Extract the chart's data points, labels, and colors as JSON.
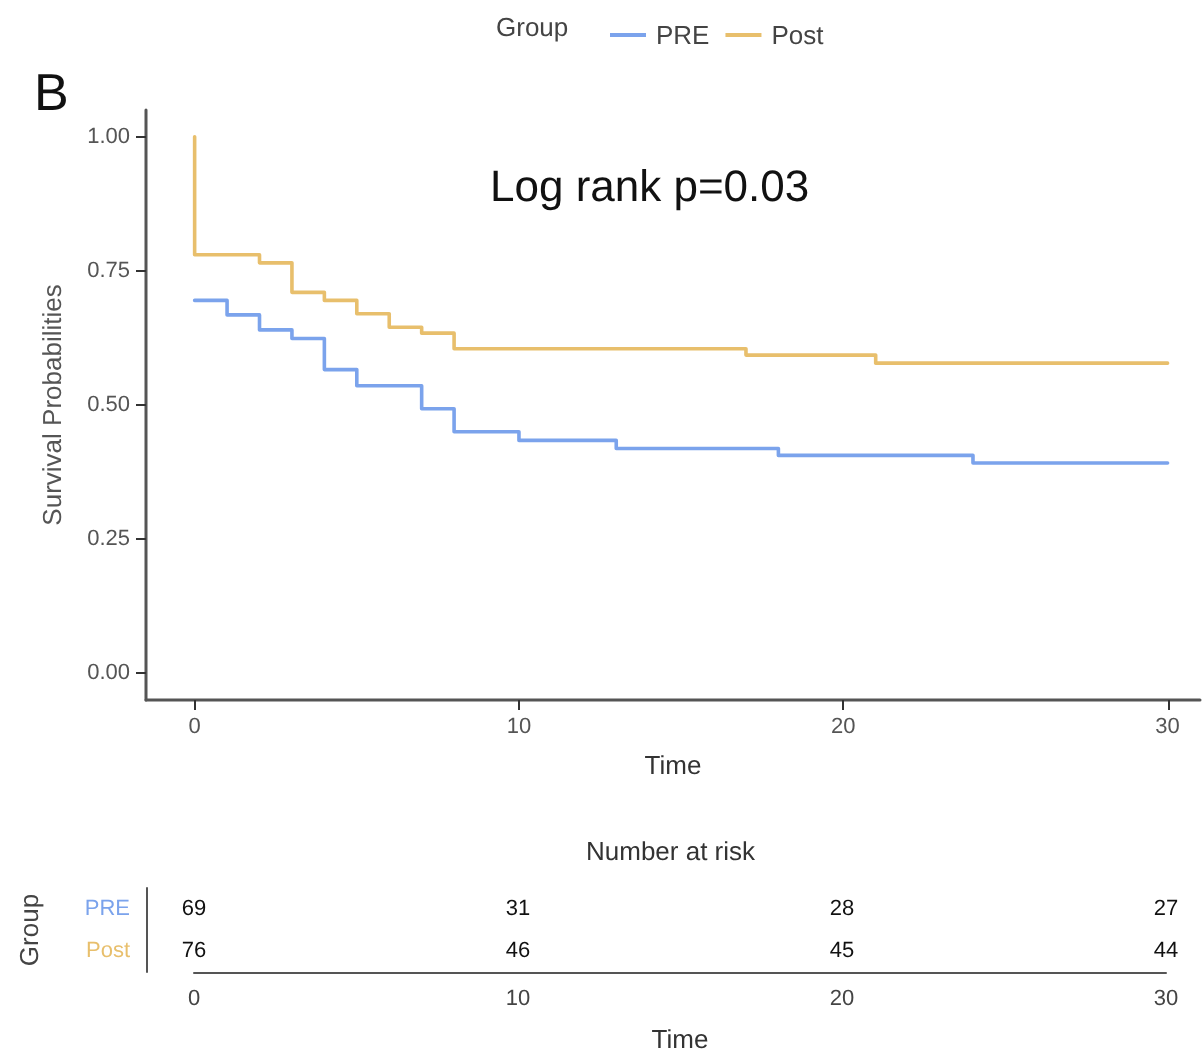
{
  "chart_data": [
    {
      "type": "step",
      "title": "B",
      "xlabel": "Time",
      "ylabel": "Survival Probabilities",
      "legend_title": "Group",
      "legend": "top",
      "grid": false,
      "marker": "none",
      "line_style": "solid",
      "annotations": [
        "Log rank p=0.03"
      ],
      "xlim": [
        -1.5,
        31
      ],
      "xticks": [
        0,
        10,
        20,
        30
      ],
      "ylim": [
        -0.05,
        1.05
      ],
      "yticks": [
        {
          "value": 0,
          "label": "0.00"
        },
        {
          "value": 0.25,
          "label": "0.25"
        },
        {
          "value": 0.5,
          "label": "0.50"
        },
        {
          "value": 0.75,
          "label": "0.75"
        },
        {
          "value": 1,
          "label": "1.00"
        }
      ],
      "series": [
        {
          "name": "PRE",
          "color": "#7ba3ec",
          "x": [
            0,
            1,
            2,
            3,
            4,
            5,
            7,
            8,
            10,
            13,
            18,
            24,
            30
          ],
          "values": [
            0.695,
            0.668,
            0.64,
            0.624,
            0.566,
            0.536,
            0.493,
            0.45,
            0.434,
            0.419,
            0.406,
            0.392,
            0.392
          ]
        },
        {
          "name": "Post",
          "color": "#e8bf6c",
          "x": [
            0,
            0,
            2,
            3,
            4,
            5,
            6,
            7,
            8,
            17,
            21,
            30
          ],
          "values": [
            1.0,
            0.78,
            0.765,
            0.71,
            0.695,
            0.67,
            0.645,
            0.634,
            0.605,
            0.593,
            0.578,
            0.578
          ]
        }
      ]
    },
    {
      "type": "heatmap",
      "title": "Number at risk",
      "xlabel": "Time",
      "ylabel": "Group",
      "categories": [
        "0",
        "10",
        "20",
        "30"
      ],
      "y_categories": [
        "PRE",
        "Post"
      ],
      "cells": [
        [
          69,
          31,
          28,
          27
        ],
        [
          76,
          46,
          45,
          44
        ]
      ],
      "data_labels": true
    }
  ]
}
